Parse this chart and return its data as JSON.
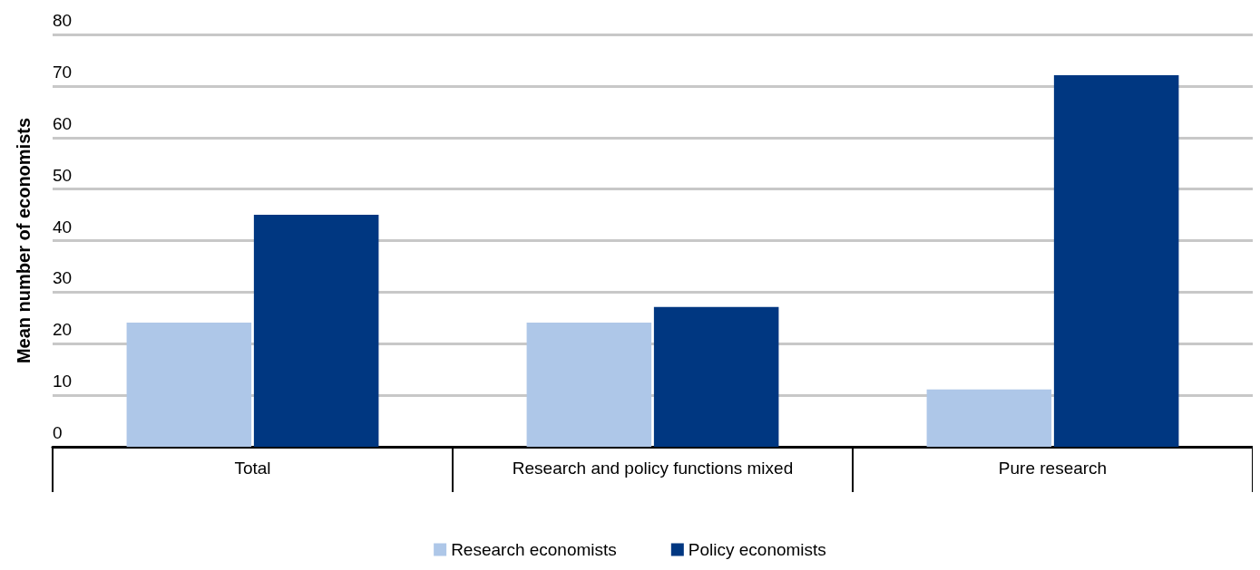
{
  "chart_data": {
    "type": "bar",
    "ylabel": "Mean number of economists",
    "categories": [
      "Total",
      "Research and policy functions mixed",
      "Pure research"
    ],
    "series": [
      {
        "name": "Research economists",
        "color": "#aec7e8",
        "values": [
          24.1,
          24.1,
          11.1
        ]
      },
      {
        "name": "Policy economists",
        "color": "#003781",
        "values": [
          45.0,
          27.1,
          72.1
        ]
      }
    ],
    "ylim": [
      0,
      80
    ],
    "yticks": [
      0,
      10,
      20,
      30,
      40,
      50,
      60,
      70,
      80
    ],
    "grid": "y",
    "legend": "bottom"
  }
}
